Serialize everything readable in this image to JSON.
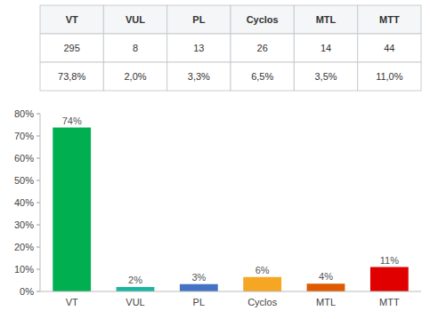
{
  "chart_data": [
    {
      "type": "table",
      "rows": [
        [
          "VT",
          "VUL",
          "PL",
          "Cyclos",
          "MTL",
          "MTT"
        ],
        [
          "295",
          "8",
          "13",
          "26",
          "14",
          "44"
        ],
        [
          "73,8%",
          "2,0%",
          "3,3%",
          "6,5%",
          "3,5%",
          "11,0%"
        ]
      ]
    },
    {
      "type": "bar",
      "categories": [
        "VT",
        "VUL",
        "PL",
        "Cyclos",
        "MTL",
        "MTT"
      ],
      "values": [
        0.738,
        0.02,
        0.033,
        0.065,
        0.035,
        0.11
      ],
      "value_labels": [
        "74%",
        "2%",
        "3%",
        "6%",
        "4%",
        "11%"
      ],
      "data_labels": true,
      "colors": [
        "#00b050",
        "#1ab5a0",
        "#4472c4",
        "#f5a623",
        "#e05a00",
        "#e00000"
      ],
      "ylim": [
        0,
        0.8
      ],
      "yticks": [
        {
          "value": 0.0,
          "label": "0%"
        },
        {
          "value": 0.1,
          "label": "10%"
        },
        {
          "value": 0.2,
          "label": "20%"
        },
        {
          "value": 0.3,
          "label": "30%"
        },
        {
          "value": 0.4,
          "label": "40%"
        },
        {
          "value": 0.5,
          "label": "50%"
        },
        {
          "value": 0.6,
          "label": "60%"
        },
        {
          "value": 0.7,
          "label": "70%"
        },
        {
          "value": 0.8,
          "label": "80%"
        }
      ],
      "grid": false
    }
  ]
}
